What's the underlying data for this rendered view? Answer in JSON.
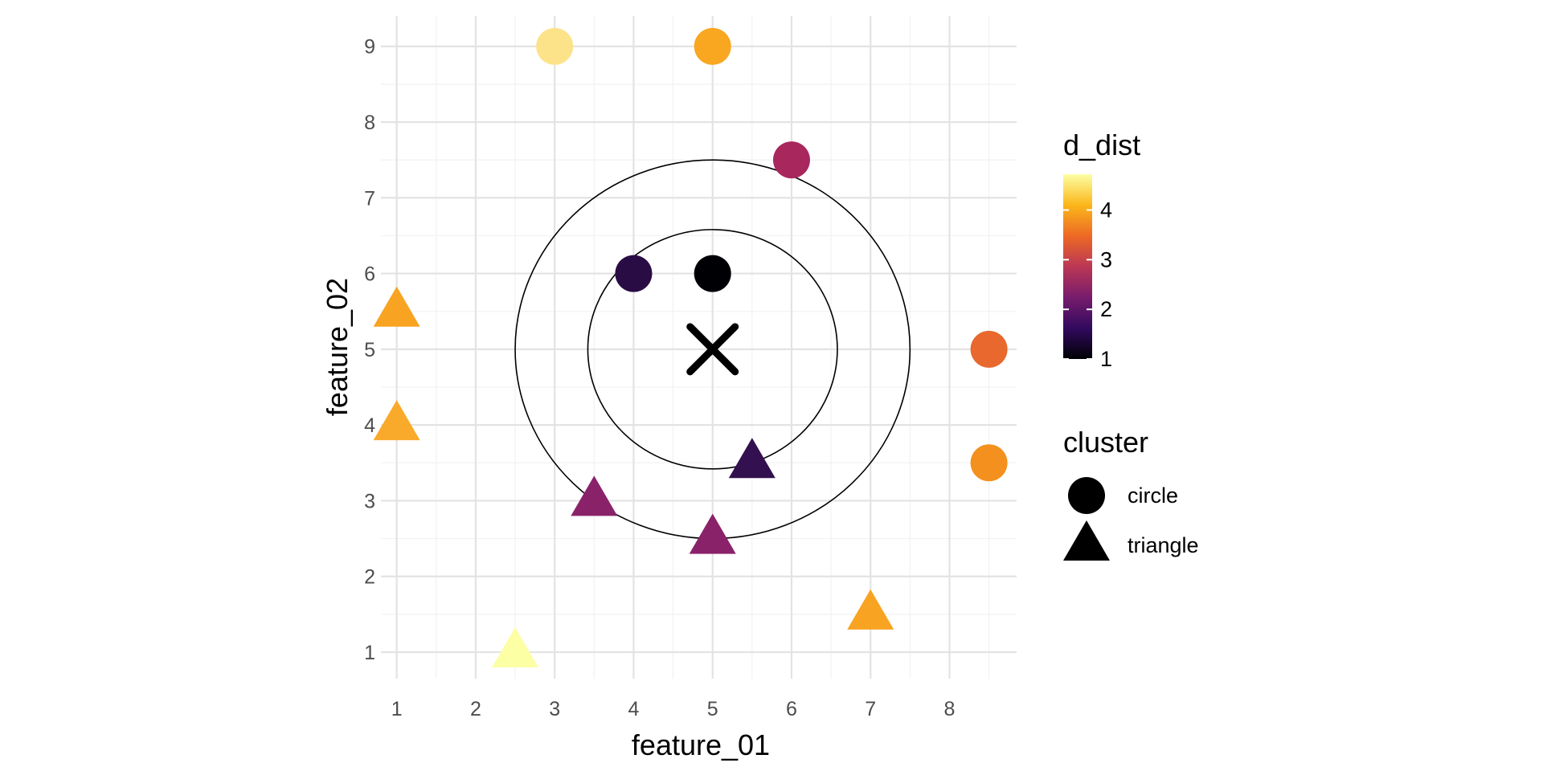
{
  "chart_data": {
    "type": "scatter",
    "xlabel": "feature_01",
    "ylabel": "feature_02",
    "xlim": [
      0.8,
      8.85
    ],
    "ylim": [
      0.65,
      9.4
    ],
    "x_ticks": [
      1,
      2,
      3,
      4,
      5,
      6,
      7,
      8
    ],
    "y_ticks": [
      1,
      2,
      3,
      4,
      5,
      6,
      7,
      8,
      9
    ],
    "grid": true,
    "center_marker": {
      "x": 5,
      "y": 5,
      "shape": "cross"
    },
    "circles": [
      {
        "cx": 5,
        "cy": 5,
        "r": 1.58
      },
      {
        "cx": 5,
        "cy": 5,
        "r": 2.5
      }
    ],
    "points": [
      {
        "x": 3,
        "y": 9,
        "cluster": "circle",
        "d_dist": 4.47,
        "color": "#FCE38A"
      },
      {
        "x": 5,
        "y": 9,
        "cluster": "circle",
        "d_dist": 4.0,
        "color": "#F9A620"
      },
      {
        "x": 6,
        "y": 7.5,
        "cluster": "circle",
        "d_dist": 2.69,
        "color": "#A8275D"
      },
      {
        "x": 4,
        "y": 6,
        "cluster": "circle",
        "d_dist": 1.41,
        "color": "#2A0C45"
      },
      {
        "x": 5,
        "y": 6,
        "cluster": "circle",
        "d_dist": 1.0,
        "color": "#000004"
      },
      {
        "x": 8.5,
        "y": 5,
        "cluster": "circle",
        "d_dist": 3.5,
        "color": "#E8682E"
      },
      {
        "x": 8.5,
        "y": 3.5,
        "cluster": "circle",
        "d_dist": 3.81,
        "color": "#F4901D"
      },
      {
        "x": 1,
        "y": 5.5,
        "cluster": "triangle",
        "d_dist": 4.03,
        "color": "#F8A322"
      },
      {
        "x": 1,
        "y": 4,
        "cluster": "triangle",
        "d_dist": 4.12,
        "color": "#F9AA2A"
      },
      {
        "x": 5.5,
        "y": 3.5,
        "cluster": "triangle",
        "d_dist": 1.58,
        "color": "#33104F"
      },
      {
        "x": 3.5,
        "y": 3,
        "cluster": "triangle",
        "d_dist": 2.5,
        "color": "#8A226A"
      },
      {
        "x": 5,
        "y": 2.5,
        "cluster": "triangle",
        "d_dist": 2.5,
        "color": "#8A226A"
      },
      {
        "x": 7,
        "y": 1.5,
        "cluster": "triangle",
        "d_dist": 4.03,
        "color": "#F8A322"
      },
      {
        "x": 2.5,
        "y": 1,
        "cluster": "triangle",
        "d_dist": 4.72,
        "color": "#FCFFA4"
      }
    ],
    "legend": {
      "placement": "right",
      "color_title": "d_dist",
      "color_range": [
        1,
        4.72
      ],
      "color_ticks": [
        1,
        2,
        3,
        4
      ],
      "color_scale": [
        "#000004",
        "#320A5E",
        "#781C6D",
        "#BB3754",
        "#ED6925",
        "#FBB61A",
        "#FCFFA4"
      ],
      "shape_title": "cluster",
      "shape_entries": [
        {
          "label": "circle",
          "shape": "circle"
        },
        {
          "label": "triangle",
          "shape": "triangle"
        }
      ]
    }
  }
}
